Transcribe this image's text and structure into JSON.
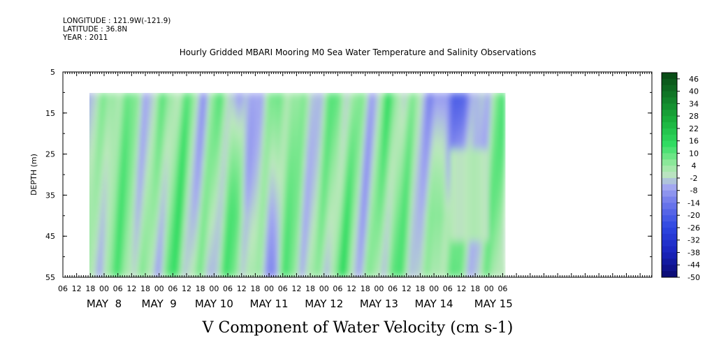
{
  "header": {
    "longitude": "LONGITUDE : 121.9W(-121.9)",
    "latitude": "LATITUDE : 36.8N",
    "year": "YEAR : 2011"
  },
  "chart_data": {
    "type": "heatmap",
    "title": "Hourly Gridded MBARI Mooring M0 Sea Water Temperature and Salinity Observations",
    "xlabel": "V Component of Water Velocity (cm s-1)",
    "ylabel": "DEPTH (m)",
    "y_ticks": [
      "5",
      "15",
      "25",
      "35",
      "45",
      "55"
    ],
    "ylim": [
      55,
      5
    ],
    "data_depth_range": [
      10,
      55
    ],
    "x_hour_ticks": [
      "06",
      "12",
      "18",
      "00",
      "06",
      "12",
      "18",
      "00",
      "06",
      "12",
      "18",
      "00",
      "06",
      "12",
      "18",
      "00",
      "06",
      "12",
      "18",
      "00",
      "06",
      "12",
      "18",
      "00",
      "06",
      "12",
      "18",
      "00",
      "06",
      "12",
      "18",
      "00",
      "06"
    ],
    "x_day_labels": [
      "MAY  8",
      "MAY  9",
      "MAY 10",
      "MAY 11",
      "MAY 12",
      "MAY 13",
      "MAY 14",
      "MAY 15"
    ],
    "colorbar": {
      "labels": [
        "46",
        "40",
        "34",
        "28",
        "22",
        "16",
        "10",
        "4",
        "-2",
        "-8",
        "-14",
        "-20",
        "-26",
        "-32",
        "-38",
        "-44",
        "-50"
      ],
      "min": -50,
      "max": 49
    },
    "data_start": "MAY 7 13:00",
    "data_end": "MAY 15 07:00",
    "pattern_note": "Velocities mostly between -20 and 16 cm s-1; alternating positive (green) and negative (blue) bands with tidal periodicity; strongest negatives near surface on May 10 and May 14."
  },
  "colors": {
    "strong_negative": "#1a2fd6",
    "weak_negative": "#a6acf0",
    "near_zero": "#b8f0b8",
    "positive": "#3de06a",
    "strong_positive": "#0b5a1d"
  }
}
